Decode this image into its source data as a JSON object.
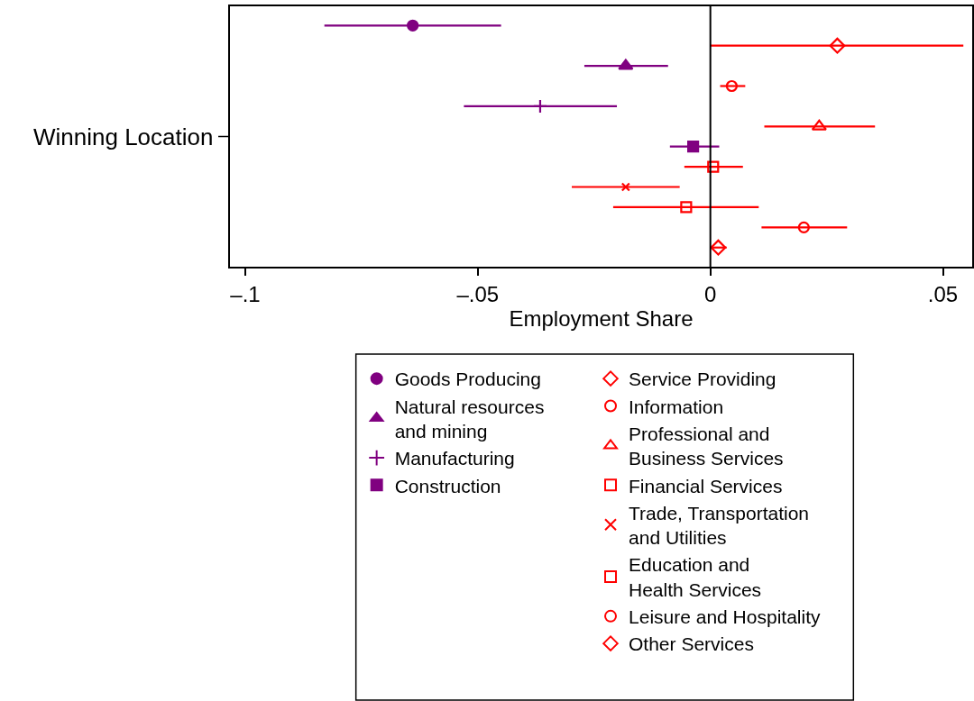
{
  "chart_data": {
    "type": "scatter",
    "orientation": "horizontal",
    "xlabel": "Employment Share",
    "ylabel": "Winning Location",
    "categories": [
      null,
      null,
      null,
      null,
      null,
      null,
      null,
      null,
      null,
      null,
      null,
      null
    ],
    "xlim": [
      -0.1033,
      0.0563
    ],
    "xticks": [
      {
        "value": -0.1,
        "label": "–.1"
      },
      {
        "value": -0.05,
        "label": "–.05"
      },
      0,
      {
        "value": 0.05,
        "label": ".05"
      }
    ],
    "ref_lines": [
      {
        "axis": "x",
        "value": 0,
        "label": null,
        "color": "#000000"
      }
    ],
    "legend": "bottom",
    "series": [
      {
        "name": "Goods Producing",
        "color": "#800080",
        "marker": "circle",
        "values": [
          -0.064,
          null,
          null,
          null,
          null,
          null,
          null,
          null,
          null,
          null,
          null,
          null
        ],
        "errors": [
          [
            -0.083,
            -0.045
          ],
          null,
          null,
          null,
          null,
          null,
          null,
          null,
          null,
          null,
          null,
          null
        ]
      },
      {
        "name": "Service Providing",
        "color": "#ff0000",
        "marker": "diamond",
        "values": [
          null,
          0.0273,
          null,
          null,
          null,
          null,
          null,
          null,
          null,
          null,
          null,
          null
        ],
        "errors": [
          null,
          [
            0.0,
            0.0544
          ],
          null,
          null,
          null,
          null,
          null,
          null,
          null,
          null,
          null,
          null
        ]
      },
      {
        "name": "Natural resources\nand mining",
        "color": "#800080",
        "marker": "triangle",
        "values": [
          null,
          null,
          -0.0182,
          null,
          null,
          null,
          null,
          null,
          null,
          null,
          null,
          null
        ],
        "errors": [
          null,
          null,
          [
            -0.0271,
            -0.0091
          ],
          null,
          null,
          null,
          null,
          null,
          null,
          null,
          null,
          null
        ]
      },
      {
        "name": "Information",
        "color": "#ff0000",
        "marker": "circle",
        "values": [
          null,
          null,
          null,
          0.0046,
          null,
          null,
          null,
          null,
          null,
          null,
          null,
          null
        ],
        "errors": [
          null,
          null,
          null,
          [
            0.0021,
            0.0075
          ],
          null,
          null,
          null,
          null,
          null,
          null,
          null,
          null
        ]
      },
      {
        "name": "Manufacturing",
        "color": "#800080",
        "marker": "cross",
        "values": [
          null,
          null,
          null,
          null,
          -0.0366,
          null,
          null,
          null,
          null,
          null,
          null,
          null
        ],
        "errors": [
          null,
          null,
          null,
          null,
          [
            -0.053,
            -0.0201
          ],
          null,
          null,
          null,
          null,
          null,
          null,
          null
        ]
      },
      {
        "name": "Professional and\nBusiness Services",
        "color": "#ff0000",
        "marker": "triangle",
        "values": [
          null,
          null,
          null,
          null,
          null,
          0.0234,
          null,
          null,
          null,
          null,
          null,
          null
        ],
        "errors": [
          null,
          null,
          null,
          null,
          null,
          [
            0.0116,
            0.0354
          ],
          null,
          null,
          null,
          null,
          null,
          null
        ]
      },
      {
        "name": "Construction",
        "color": "#800080",
        "marker": "square",
        "values": [
          null,
          null,
          null,
          null,
          null,
          null,
          -0.0037,
          null,
          null,
          null,
          null,
          null
        ],
        "errors": [
          null,
          null,
          null,
          null,
          null,
          null,
          [
            -0.0087,
            0.0019
          ],
          null,
          null,
          null,
          null,
          null
        ]
      },
      {
        "name": "Financial Services",
        "color": "#ff0000",
        "marker": "square",
        "values": [
          null,
          null,
          null,
          null,
          null,
          null,
          null,
          0.0006,
          null,
          null,
          null,
          null
        ],
        "errors": [
          null,
          null,
          null,
          null,
          null,
          null,
          null,
          [
            -0.0056,
            0.007
          ],
          null,
          null,
          null,
          null
        ]
      },
      {
        "name": "Trade, Transportation\nand Utilities",
        "color": "#ff0000",
        "marker": "cross",
        "values": [
          null,
          null,
          null,
          null,
          null,
          null,
          null,
          null,
          -0.0182,
          null,
          null,
          null
        ],
        "errors": [
          null,
          null,
          null,
          null,
          null,
          null,
          null,
          null,
          [
            -0.0298,
            -0.0066
          ],
          null,
          null,
          null
        ]
      },
      {
        "name": "Education and\nHealth Services",
        "color": "#ff0000",
        "marker": "square",
        "values": [
          null,
          null,
          null,
          null,
          null,
          null,
          null,
          null,
          null,
          -0.0052,
          null,
          null
        ],
        "errors": [
          null,
          null,
          null,
          null,
          null,
          null,
          null,
          null,
          null,
          [
            -0.0209,
            0.0104
          ],
          null,
          null
        ]
      },
      {
        "name": "Leisure and Hospitality",
        "color": "#ff0000",
        "marker": "circle",
        "values": [
          null,
          null,
          null,
          null,
          null,
          null,
          null,
          null,
          null,
          null,
          0.0201,
          null
        ],
        "errors": [
          null,
          null,
          null,
          null,
          null,
          null,
          null,
          null,
          null,
          null,
          [
            0.011,
            0.0294
          ],
          null
        ]
      },
      {
        "name": "Other Services",
        "color": "#ff0000",
        "marker": "diamond",
        "values": [
          null,
          null,
          null,
          null,
          null,
          null,
          null,
          null,
          null,
          null,
          null,
          0.0017
        ],
        "errors": [
          null,
          null,
          null,
          null,
          null,
          null,
          null,
          null,
          null,
          null,
          null,
          [
            0.0004,
            0.0035
          ]
        ]
      }
    ]
  }
}
